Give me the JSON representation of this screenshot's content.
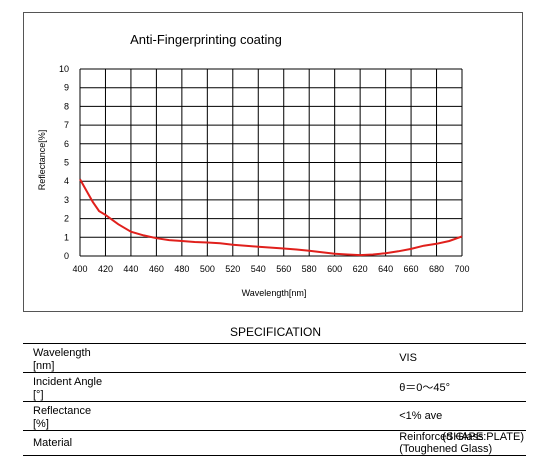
{
  "chart_data": {
    "type": "line",
    "title": "Anti-Fingerprinting coating",
    "xlabel": "Wavelength[nm]",
    "ylabel": "Reflectance[%]",
    "xlim": [
      400,
      700
    ],
    "ylim": [
      0,
      10
    ],
    "xticks": [
      400,
      420,
      440,
      460,
      480,
      500,
      520,
      540,
      560,
      580,
      600,
      620,
      640,
      660,
      680,
      700
    ],
    "yticks": [
      0,
      1,
      2,
      3,
      4,
      5,
      6,
      7,
      8,
      9,
      10
    ],
    "grid": true,
    "series_color": "#e0201c",
    "x": [
      400,
      405,
      410,
      415,
      420,
      430,
      440,
      450,
      460,
      470,
      480,
      490,
      500,
      510,
      520,
      530,
      540,
      550,
      560,
      570,
      580,
      590,
      600,
      610,
      620,
      630,
      640,
      650,
      660,
      670,
      680,
      690,
      700
    ],
    "y": [
      4.1,
      3.5,
      2.9,
      2.4,
      2.2,
      1.7,
      1.3,
      1.1,
      0.95,
      0.85,
      0.8,
      0.75,
      0.72,
      0.68,
      0.6,
      0.55,
      0.5,
      0.45,
      0.4,
      0.35,
      0.28,
      0.2,
      0.12,
      0.08,
      0.05,
      0.08,
      0.15,
      0.25,
      0.38,
      0.55,
      0.65,
      0.8,
      1.05
    ]
  },
  "specification": {
    "title": "SPECIFICATION",
    "rows": [
      {
        "label": "Wavelength　[nm]",
        "value": "VIS"
      },
      {
        "label": "Incident Angle　[°]",
        "value": "θ＝0～45°"
      },
      {
        "label": "Reflectance　[%]",
        "value": "<1% ave"
      },
      {
        "label": "Material",
        "value": "Reinforced Glass (Toughened Glass)"
      }
    ],
    "shape_note": "(SHAPE:PLATE)"
  }
}
